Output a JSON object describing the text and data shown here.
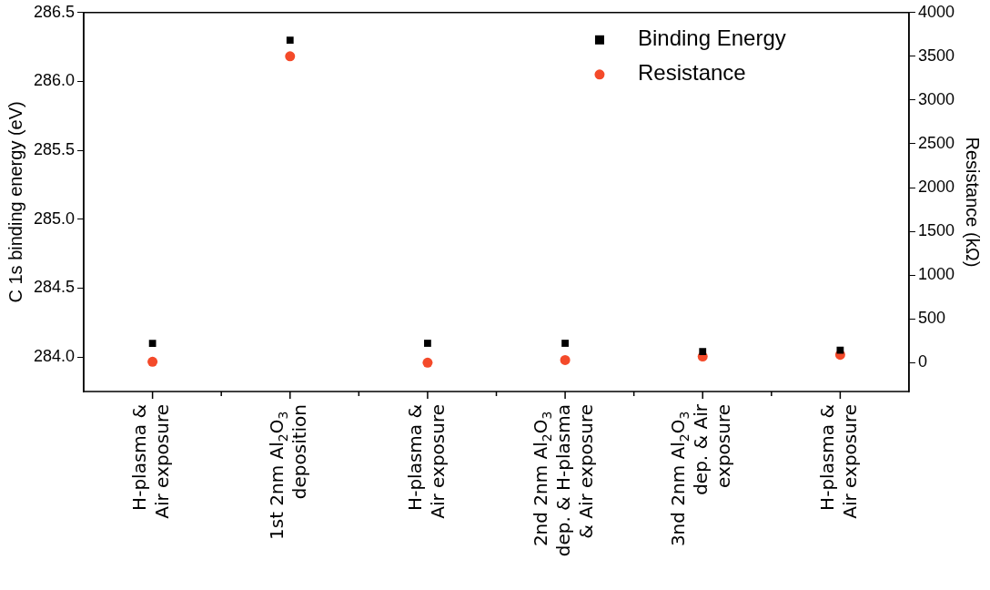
{
  "chart_data": {
    "type": "scatter",
    "categories": [
      "H-plasma &\nAir exposure",
      "1st 2nm Al$_{2}$O$_{3}$\ndeposition",
      "H-plasma &\nAir exposure",
      "2nd 2nm Al$_{2}$O$_{3}$\ndep. & H-plasma\n& Air exposure",
      "3nd 2nm Al$_{2}$O$_{3}$\ndep. & Air\nexposure",
      "H-plasma &\nAir exposure"
    ],
    "series": [
      {
        "name": "Binding Energy",
        "color": "#000000",
        "marker": "square",
        "values": [
          284.1,
          286.3,
          284.1,
          284.1,
          284.04,
          284.05
        ]
      },
      {
        "name": "Resistance",
        "color": "#f44a2a",
        "marker": "circle",
        "axis": "y2",
        "values": [
          10,
          3500,
          0,
          30,
          70,
          90
        ]
      }
    ],
    "ylabel": "C 1s binding energy (eV)",
    "y2label": "Resistance (kΩ)",
    "ylim": [
      283.75,
      286.5
    ],
    "yticks": [
      {
        "value": 284,
        "label": "284.0"
      },
      {
        "value": 284.5,
        "label": "284.5"
      },
      {
        "value": 285,
        "label": "285.0"
      },
      {
        "value": 285.5,
        "label": "285.5"
      },
      {
        "value": 286,
        "label": "286.0"
      },
      {
        "value": 286.5,
        "label": "286.5"
      }
    ],
    "y2lim": [
      -330,
      4000
    ],
    "y2ticks": [
      0,
      500,
      1000,
      1500,
      2000,
      2500,
      3000,
      3500,
      4000
    ],
    "grid": false,
    "legend": "top right"
  }
}
